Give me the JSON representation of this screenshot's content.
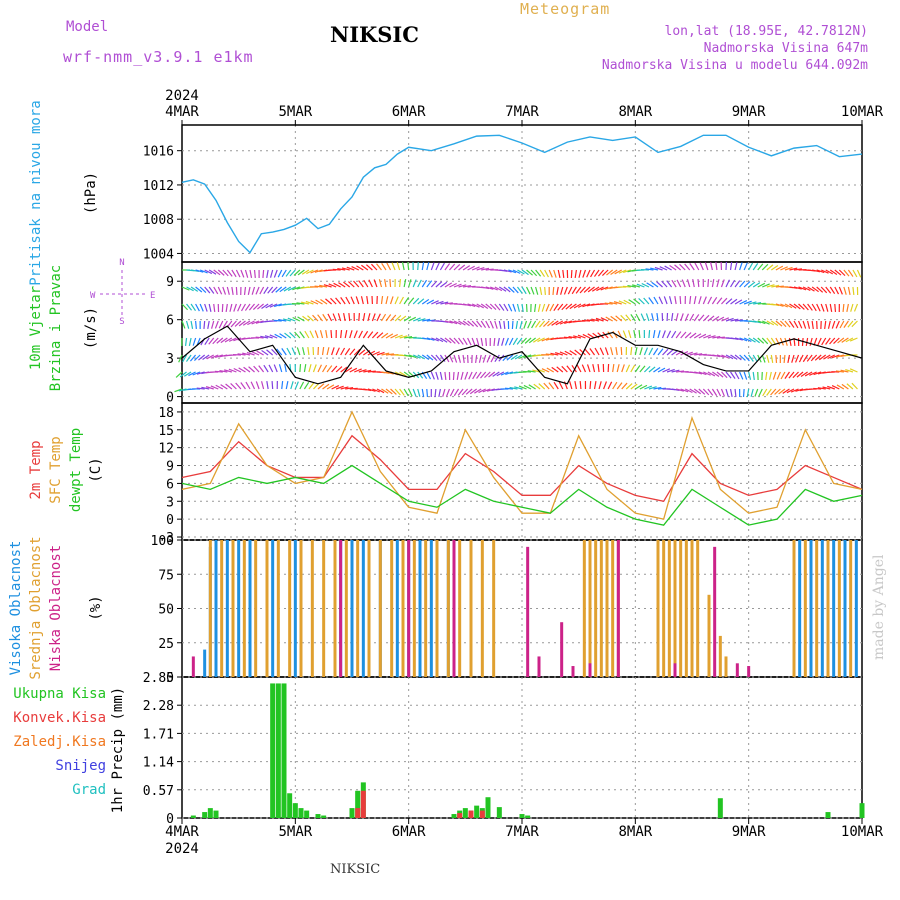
{
  "header": {
    "model_label": "Model",
    "model_name": "wrf-nmm_v3.9.1  e1km",
    "station": "NIKSIC",
    "title": "Meteogram",
    "coords": "lon,lat (18.95E, 42.7812N)",
    "elevation": "Nadmorska Visina 647m",
    "model_elevation": "Nadmorska Visina u modelu 644.092m"
  },
  "footer": {
    "station": "NIKSIC",
    "watermark": "made by Angel"
  },
  "colors": {
    "pressure": "#2aa7e6",
    "wind_speed": "#000000",
    "t2m": "#e83c3c",
    "sfc": "#e0a030",
    "dewpt": "#22c422",
    "high_cloud": "#1e90e0",
    "mid_cloud": "#e0a030",
    "low_cloud": "#cc2288",
    "total_precip": "#22c422",
    "conv_precip": "#e83c3c",
    "frozen": "#f07820",
    "snow": "#4040e0",
    "hail": "#20c0c0"
  },
  "chart_data": [
    {
      "type": "line",
      "title": "Pritisak na nivou mora",
      "ylabel": "(hPa)",
      "x_ticks": [
        "4MAR",
        "5MAR",
        "6MAR",
        "7MAR",
        "8MAR",
        "9MAR",
        "10MAR"
      ],
      "year": "2024",
      "ylim": [
        1003,
        1019
      ],
      "yticks": [
        "1004",
        "1008",
        "1012",
        "1016"
      ],
      "series": [
        {
          "name": "Pritisak na nivou mora",
          "x": [
            0,
            0.1,
            0.2,
            0.3,
            0.4,
            0.5,
            0.6,
            0.7,
            0.8,
            0.9,
            1.0,
            1.1,
            1.2,
            1.3,
            1.4,
            1.5,
            1.6,
            1.7,
            1.8,
            1.9,
            2.0,
            2.2,
            2.4,
            2.6,
            2.8,
            3.0,
            3.2,
            3.4,
            3.6,
            3.8,
            4.0,
            4.2,
            4.4,
            4.6,
            4.8,
            5.0,
            5.2,
            5.4,
            5.6,
            5.8,
            6.0
          ],
          "values": [
            1012.3,
            1012.6,
            1012.1,
            1010.2,
            1007.6,
            1005.4,
            1004.1,
            1006.3,
            1006.5,
            1006.8,
            1007.3,
            1008.1,
            1006.9,
            1007.4,
            1009.2,
            1010.6,
            1012.9,
            1014.0,
            1014.4,
            1015.6,
            1016.4,
            1016.0,
            1016.8,
            1017.7,
            1017.8,
            1016.9,
            1015.8,
            1017.0,
            1017.6,
            1017.2,
            1017.6,
            1015.8,
            1016.5,
            1017.8,
            1017.8,
            1016.4,
            1015.4,
            1016.3,
            1016.6,
            1015.3,
            1015.6
          ]
        }
      ]
    },
    {
      "type": "line",
      "title": "10m Vjetar Brzina i Pravac",
      "ylabel": "(m/s)",
      "direction_legend": {
        "n": "N",
        "s": "S",
        "e": "E",
        "w": "W"
      },
      "ylim": [
        -0.5,
        10.5
      ],
      "yticks": [
        "0",
        "3",
        "6",
        "9"
      ],
      "series": [
        {
          "name": "10m Vjetar Brzina",
          "x": [
            0,
            0.2,
            0.4,
            0.6,
            0.8,
            1.0,
            1.2,
            1.4,
            1.6,
            1.8,
            2.0,
            2.2,
            2.4,
            2.6,
            2.8,
            3.0,
            3.2,
            3.4,
            3.6,
            3.8,
            4.0,
            4.2,
            4.4,
            4.6,
            4.8,
            5.0,
            5.2,
            5.4,
            5.6,
            5.8,
            6.0
          ],
          "values": [
            3.0,
            4.5,
            5.5,
            3.5,
            4.0,
            1.5,
            1.0,
            1.5,
            4.0,
            2.0,
            1.5,
            2.0,
            3.5,
            4.0,
            3.0,
            3.5,
            1.5,
            1.0,
            4.5,
            5.0,
            4.0,
            4.0,
            3.5,
            2.5,
            2.0,
            2.0,
            4.0,
            4.5,
            4.0,
            3.5,
            3.0
          ]
        }
      ]
    },
    {
      "type": "line",
      "title": "2m Temp / SFC Temp / dewpt Temp",
      "ylabel": "(C)",
      "ylim": [
        -3.5,
        19.5
      ],
      "yticks": [
        "-3",
        "0",
        "3",
        "6",
        "9",
        "12",
        "15",
        "18"
      ],
      "x": [
        0,
        0.25,
        0.5,
        0.75,
        1.0,
        1.25,
        1.5,
        1.75,
        2.0,
        2.25,
        2.5,
        2.75,
        3.0,
        3.25,
        3.5,
        3.75,
        4.0,
        4.25,
        4.5,
        4.75,
        5.0,
        5.25,
        5.5,
        5.75,
        6.0
      ],
      "series": [
        {
          "name": "2m Temp",
          "values": [
            7,
            8,
            13,
            9,
            7,
            7,
            14,
            10,
            5,
            5,
            11,
            8,
            4,
            4,
            9,
            6,
            4,
            3,
            11,
            6,
            4,
            5,
            9,
            7,
            5
          ]
        },
        {
          "name": "SFC Temp",
          "values": [
            5,
            6,
            16,
            9,
            6,
            7,
            18,
            8,
            2,
            1,
            15,
            7,
            1,
            1,
            14,
            5,
            1,
            0,
            17,
            5,
            1,
            2,
            15,
            6,
            5
          ]
        },
        {
          "name": "dewpt Temp",
          "values": [
            6,
            5,
            7,
            6,
            7,
            6,
            9,
            6,
            3,
            2,
            5,
            3,
            2,
            1,
            5,
            2,
            0,
            -1,
            5,
            2,
            -1,
            0,
            5,
            3,
            4
          ]
        }
      ]
    },
    {
      "type": "bar",
      "title": "Visoka Oblacnost / Srednja Oblacnost / Niska Oblacnost",
      "ylabel": "(%)",
      "ylim": [
        0,
        100
      ],
      "yticks": [
        "0",
        "25",
        "50",
        "75",
        "100"
      ],
      "series": [
        {
          "name": "Visoka Oblacnost",
          "x": [
            0.2,
            0.25,
            0.3,
            0.4,
            0.5,
            0.6,
            0.8,
            1.0,
            1.4,
            1.5,
            1.6,
            1.75,
            1.9,
            2.0,
            2.1,
            2.2,
            2.35,
            5.45,
            5.55,
            5.65,
            5.75,
            5.85,
            5.95
          ],
          "values": [
            20,
            95,
            100,
            100,
            100,
            100,
            100,
            100,
            100,
            100,
            100,
            100,
            100,
            100,
            100,
            100,
            100,
            100,
            100,
            100,
            100,
            100,
            100
          ]
        },
        {
          "name": "Srednja Oblacnost",
          "x": [
            0.25,
            0.35,
            0.45,
            0.55,
            0.65,
            0.75,
            0.85,
            0.95,
            1.05,
            1.15,
            1.25,
            1.35,
            1.45,
            1.55,
            1.65,
            1.75,
            1.85,
            1.95,
            2.05,
            2.15,
            2.25,
            2.35,
            2.45,
            2.55,
            2.65,
            2.75,
            3.55,
            3.6,
            3.65,
            3.7,
            3.75,
            3.8,
            3.85,
            4.2,
            4.25,
            4.3,
            4.35,
            4.4,
            4.45,
            4.5,
            4.55,
            4.65,
            4.75,
            4.8,
            5.4,
            5.5,
            5.6,
            5.7,
            5.8,
            5.9
          ],
          "values": [
            100,
            100,
            100,
            100,
            100,
            100,
            100,
            100,
            100,
            100,
            100,
            100,
            100,
            100,
            100,
            100,
            100,
            100,
            100,
            100,
            100,
            100,
            100,
            100,
            100,
            100,
            100,
            100,
            100,
            100,
            100,
            100,
            100,
            100,
            100,
            100,
            100,
            100,
            100,
            100,
            100,
            60,
            30,
            15,
            100,
            100,
            100,
            100,
            100,
            100
          ]
        },
        {
          "name": "Niska Oblacnost",
          "x": [
            0.1,
            1.4,
            2.0,
            2.4,
            3.05,
            3.15,
            3.35,
            3.45,
            3.85,
            3.6,
            4.35,
            4.7,
            4.9,
            5.0
          ],
          "values": [
            15,
            100,
            100,
            100,
            95,
            15,
            40,
            8,
            100,
            10,
            10,
            95,
            10,
            8
          ]
        }
      ]
    },
    {
      "type": "bar",
      "title": "1hr Precip",
      "ylabel": "(mm)",
      "ylim": [
        0,
        2.85
      ],
      "yticks": [
        "0",
        "0.57",
        "1.14",
        "1.71",
        "2.28",
        "2.85"
      ],
      "legend": [
        "Ukupna Kisa",
        "Konvek.Kisa",
        "Zaledj.Kisa",
        "Snijeg",
        "Grad"
      ],
      "series": [
        {
          "name": "Ukupna Kisa",
          "x": [
            0.1,
            0.2,
            0.25,
            0.3,
            0.8,
            0.85,
            0.9,
            0.95,
            1.0,
            1.05,
            1.1,
            1.2,
            1.25,
            1.5,
            1.55,
            1.6,
            2.4,
            2.45,
            2.5,
            2.55,
            2.6,
            2.65,
            2.7,
            2.8,
            3.0,
            3.05,
            4.75,
            5.7,
            6.0
          ],
          "values": [
            0.05,
            0.12,
            0.2,
            0.15,
            2.72,
            2.72,
            2.72,
            0.5,
            0.3,
            0.2,
            0.15,
            0.08,
            0.05,
            0.2,
            0.55,
            0.72,
            0.08,
            0.15,
            0.2,
            0.15,
            0.25,
            0.2,
            0.42,
            0.22,
            0.08,
            0.05,
            0.4,
            0.12,
            0.3
          ]
        },
        {
          "name": "Konvek.Kisa",
          "x": [
            1.55,
            1.6,
            2.45,
            2.55,
            2.65
          ],
          "values": [
            0.2,
            0.55,
            0.1,
            0.15,
            0.15
          ]
        }
      ]
    }
  ]
}
